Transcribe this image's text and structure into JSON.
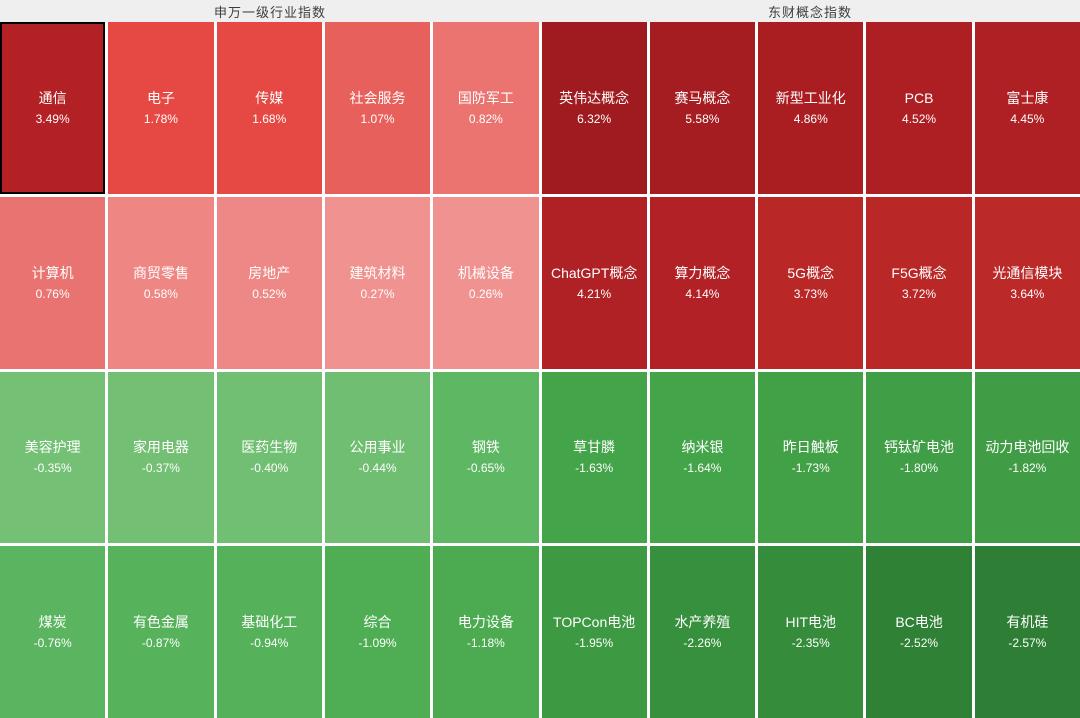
{
  "header": {
    "left_title": "申万一级行业指数",
    "right_title": "东财概念指数"
  },
  "colors": {
    "header_bg": "#efefef",
    "header_text": "#3d3d3d",
    "gap": "#ffffff",
    "tile_text": "#ffffff",
    "selected_border": "#000000",
    "red_max": "#a01b1f",
    "red_min": "#f09290",
    "green_min": "#74c175",
    "green_max": "#2e7f35"
  },
  "chart_data": {
    "type": "heatmap",
    "rows": 4,
    "cols": 10,
    "groups": [
      "申万一级行业指数",
      "东财概念指数"
    ],
    "legend_note": "red = gain, green = loss; darker shade = larger magnitude",
    "tiles": [
      {
        "name": "通信",
        "change": "3.49%",
        "value": 3.49,
        "group": "申万一级行业指数",
        "bg": "#b42125",
        "selected": true
      },
      {
        "name": "电子",
        "change": "1.78%",
        "value": 1.78,
        "group": "申万一级行业指数",
        "bg": "#e64944",
        "selected": false
      },
      {
        "name": "传媒",
        "change": "1.68%",
        "value": 1.68,
        "group": "申万一级行业指数",
        "bg": "#e64944",
        "selected": false
      },
      {
        "name": "社会服务",
        "change": "1.07%",
        "value": 1.07,
        "group": "申万一级行业指数",
        "bg": "#e8605b",
        "selected": false
      },
      {
        "name": "国防军工",
        "change": "0.82%",
        "value": 0.82,
        "group": "申万一级行业指数",
        "bg": "#eb7471",
        "selected": false
      },
      {
        "name": "英伟达概念",
        "change": "6.32%",
        "value": 6.32,
        "group": "东财概念指数",
        "bg": "#a01b1f",
        "selected": false
      },
      {
        "name": "赛马概念",
        "change": "5.58%",
        "value": 5.58,
        "group": "东财概念指数",
        "bg": "#a51c21",
        "selected": false
      },
      {
        "name": "新型工业化",
        "change": "4.86%",
        "value": 4.86,
        "group": "东财概念指数",
        "bg": "#aa1e22",
        "selected": false
      },
      {
        "name": "PCB",
        "change": "4.52%",
        "value": 4.52,
        "group": "东财概念指数",
        "bg": "#ad1f23",
        "selected": false
      },
      {
        "name": "富士康",
        "change": "4.45%",
        "value": 4.45,
        "group": "东财概念指数",
        "bg": "#ae2024",
        "selected": false
      },
      {
        "name": "计算机",
        "change": "0.76%",
        "value": 0.76,
        "group": "申万一级行业指数",
        "bg": "#e97370",
        "selected": false
      },
      {
        "name": "商贸零售",
        "change": "0.58%",
        "value": 0.58,
        "group": "申万一级行业指数",
        "bg": "#ee8684",
        "selected": false
      },
      {
        "name": "房地产",
        "change": "0.52%",
        "value": 0.52,
        "group": "申万一级行业指数",
        "bg": "#ee8886",
        "selected": false
      },
      {
        "name": "建筑材料",
        "change": "0.27%",
        "value": 0.27,
        "group": "申万一级行业指数",
        "bg": "#f09290",
        "selected": false
      },
      {
        "name": "机械设备",
        "change": "0.26%",
        "value": 0.26,
        "group": "申万一级行业指数",
        "bg": "#f09290",
        "selected": false
      },
      {
        "name": "ChatGPT概念",
        "change": "4.21%",
        "value": 4.21,
        "group": "东财概念指数",
        "bg": "#b02125",
        "selected": false
      },
      {
        "name": "算力概念",
        "change": "4.14%",
        "value": 4.14,
        "group": "东财概念指数",
        "bg": "#b12126",
        "selected": false
      },
      {
        "name": "5G概念",
        "change": "3.73%",
        "value": 3.73,
        "group": "东财概念指数",
        "bg": "#b92727",
        "selected": false
      },
      {
        "name": "F5G概念",
        "change": "3.72%",
        "value": 3.72,
        "group": "东财概念指数",
        "bg": "#b92727",
        "selected": false
      },
      {
        "name": "光通信模块",
        "change": "3.64%",
        "value": 3.64,
        "group": "东财概念指数",
        "bg": "#bc2929",
        "selected": false
      },
      {
        "name": "美容护理",
        "change": "-0.35%",
        "value": -0.35,
        "group": "申万一级行业指数",
        "bg": "#74c175",
        "selected": false
      },
      {
        "name": "家用电器",
        "change": "-0.37%",
        "value": -0.37,
        "group": "申万一级行业指数",
        "bg": "#73c074",
        "selected": false
      },
      {
        "name": "医药生物",
        "change": "-0.40%",
        "value": -0.4,
        "group": "申万一级行业指数",
        "bg": "#71bf72",
        "selected": false
      },
      {
        "name": "公用事业",
        "change": "-0.44%",
        "value": -0.44,
        "group": "申万一级行业指数",
        "bg": "#6fbe71",
        "selected": false
      },
      {
        "name": "钢铁",
        "change": "-0.65%",
        "value": -0.65,
        "group": "申万一级行业指数",
        "bg": "#5eb763",
        "selected": false
      },
      {
        "name": "草甘膦",
        "change": "-1.63%",
        "value": -1.63,
        "group": "东财概念指数",
        "bg": "#44a449",
        "selected": false
      },
      {
        "name": "纳米银",
        "change": "-1.64%",
        "value": -1.64,
        "group": "东财概念指数",
        "bg": "#44a449",
        "selected": false
      },
      {
        "name": "昨日触板",
        "change": "-1.73%",
        "value": -1.73,
        "group": "东财概念指数",
        "bg": "#42a147",
        "selected": false
      },
      {
        "name": "钙钛矿电池",
        "change": "-1.80%",
        "value": -1.8,
        "group": "东财概念指数",
        "bg": "#409e46",
        "selected": false
      },
      {
        "name": "动力电池回收",
        "change": "-1.82%",
        "value": -1.82,
        "group": "东财概念指数",
        "bg": "#409d45",
        "selected": false
      },
      {
        "name": "煤炭",
        "change": "-0.76%",
        "value": -0.76,
        "group": "申万一级行业指数",
        "bg": "#5bb560",
        "selected": false
      },
      {
        "name": "有色金属",
        "change": "-0.87%",
        "value": -0.87,
        "group": "申万一级行业指数",
        "bg": "#57b25c",
        "selected": false
      },
      {
        "name": "基础化工",
        "change": "-0.94%",
        "value": -0.94,
        "group": "申万一级行业指数",
        "bg": "#55b15a",
        "selected": false
      },
      {
        "name": "综合",
        "change": "-1.09%",
        "value": -1.09,
        "group": "申万一级行业指数",
        "bg": "#4fae54",
        "selected": false
      },
      {
        "name": "电力设备",
        "change": "-1.18%",
        "value": -1.18,
        "group": "申万一级行业指数",
        "bg": "#4cab51",
        "selected": false
      },
      {
        "name": "TOPCon电池",
        "change": "-1.95%",
        "value": -1.95,
        "group": "东财概念指数",
        "bg": "#3d9a43",
        "selected": false
      },
      {
        "name": "水产养殖",
        "change": "-2.26%",
        "value": -2.26,
        "group": "东财概念指数",
        "bg": "#37903e",
        "selected": false
      },
      {
        "name": "HIT电池",
        "change": "-2.35%",
        "value": -2.35,
        "group": "东财概念指数",
        "bg": "#358d3c",
        "selected": false
      },
      {
        "name": "BC电池",
        "change": "-2.52%",
        "value": -2.52,
        "group": "东财概念指数",
        "bg": "#2f8136",
        "selected": false
      },
      {
        "name": "有机硅",
        "change": "-2.57%",
        "value": -2.57,
        "group": "东财概念指数",
        "bg": "#2e7f35",
        "selected": false
      }
    ]
  }
}
